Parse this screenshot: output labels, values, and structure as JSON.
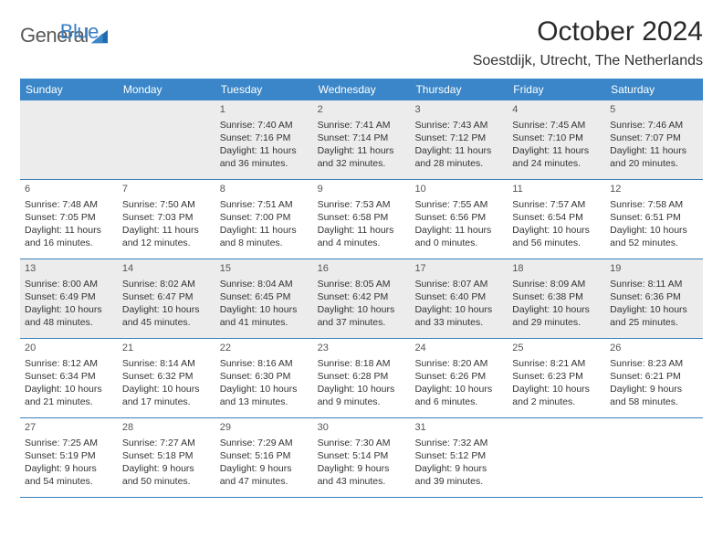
{
  "brand": {
    "text1": "General",
    "text2": "Blue"
  },
  "title": "October 2024",
  "location": "Soestdijk, Utrecht, The Netherlands",
  "colors": {
    "header_bg": "#3a86c8",
    "shaded_bg": "#ececec",
    "row_border": "#3a7fb8",
    "logo_blue": "#3a7fc4",
    "logo_gray": "#5a5a5a"
  },
  "day_names": [
    "Sunday",
    "Monday",
    "Tuesday",
    "Wednesday",
    "Thursday",
    "Friday",
    "Saturday"
  ],
  "weeks": [
    [
      null,
      null,
      {
        "n": 1,
        "sr": "7:40 AM",
        "ss": "7:16 PM",
        "dl": "11 hours and 36 minutes."
      },
      {
        "n": 2,
        "sr": "7:41 AM",
        "ss": "7:14 PM",
        "dl": "11 hours and 32 minutes."
      },
      {
        "n": 3,
        "sr": "7:43 AM",
        "ss": "7:12 PM",
        "dl": "11 hours and 28 minutes."
      },
      {
        "n": 4,
        "sr": "7:45 AM",
        "ss": "7:10 PM",
        "dl": "11 hours and 24 minutes."
      },
      {
        "n": 5,
        "sr": "7:46 AM",
        "ss": "7:07 PM",
        "dl": "11 hours and 20 minutes."
      }
    ],
    [
      {
        "n": 6,
        "sr": "7:48 AM",
        "ss": "7:05 PM",
        "dl": "11 hours and 16 minutes."
      },
      {
        "n": 7,
        "sr": "7:50 AM",
        "ss": "7:03 PM",
        "dl": "11 hours and 12 minutes."
      },
      {
        "n": 8,
        "sr": "7:51 AM",
        "ss": "7:00 PM",
        "dl": "11 hours and 8 minutes."
      },
      {
        "n": 9,
        "sr": "7:53 AM",
        "ss": "6:58 PM",
        "dl": "11 hours and 4 minutes."
      },
      {
        "n": 10,
        "sr": "7:55 AM",
        "ss": "6:56 PM",
        "dl": "11 hours and 0 minutes."
      },
      {
        "n": 11,
        "sr": "7:57 AM",
        "ss": "6:54 PM",
        "dl": "10 hours and 56 minutes."
      },
      {
        "n": 12,
        "sr": "7:58 AM",
        "ss": "6:51 PM",
        "dl": "10 hours and 52 minutes."
      }
    ],
    [
      {
        "n": 13,
        "sr": "8:00 AM",
        "ss": "6:49 PM",
        "dl": "10 hours and 48 minutes."
      },
      {
        "n": 14,
        "sr": "8:02 AM",
        "ss": "6:47 PM",
        "dl": "10 hours and 45 minutes."
      },
      {
        "n": 15,
        "sr": "8:04 AM",
        "ss": "6:45 PM",
        "dl": "10 hours and 41 minutes."
      },
      {
        "n": 16,
        "sr": "8:05 AM",
        "ss": "6:42 PM",
        "dl": "10 hours and 37 minutes."
      },
      {
        "n": 17,
        "sr": "8:07 AM",
        "ss": "6:40 PM",
        "dl": "10 hours and 33 minutes."
      },
      {
        "n": 18,
        "sr": "8:09 AM",
        "ss": "6:38 PM",
        "dl": "10 hours and 29 minutes."
      },
      {
        "n": 19,
        "sr": "8:11 AM",
        "ss": "6:36 PM",
        "dl": "10 hours and 25 minutes."
      }
    ],
    [
      {
        "n": 20,
        "sr": "8:12 AM",
        "ss": "6:34 PM",
        "dl": "10 hours and 21 minutes."
      },
      {
        "n": 21,
        "sr": "8:14 AM",
        "ss": "6:32 PM",
        "dl": "10 hours and 17 minutes."
      },
      {
        "n": 22,
        "sr": "8:16 AM",
        "ss": "6:30 PM",
        "dl": "10 hours and 13 minutes."
      },
      {
        "n": 23,
        "sr": "8:18 AM",
        "ss": "6:28 PM",
        "dl": "10 hours and 9 minutes."
      },
      {
        "n": 24,
        "sr": "8:20 AM",
        "ss": "6:26 PM",
        "dl": "10 hours and 6 minutes."
      },
      {
        "n": 25,
        "sr": "8:21 AM",
        "ss": "6:23 PM",
        "dl": "10 hours and 2 minutes."
      },
      {
        "n": 26,
        "sr": "8:23 AM",
        "ss": "6:21 PM",
        "dl": "9 hours and 58 minutes."
      }
    ],
    [
      {
        "n": 27,
        "sr": "7:25 AM",
        "ss": "5:19 PM",
        "dl": "9 hours and 54 minutes."
      },
      {
        "n": 28,
        "sr": "7:27 AM",
        "ss": "5:18 PM",
        "dl": "9 hours and 50 minutes."
      },
      {
        "n": 29,
        "sr": "7:29 AM",
        "ss": "5:16 PM",
        "dl": "9 hours and 47 minutes."
      },
      {
        "n": 30,
        "sr": "7:30 AM",
        "ss": "5:14 PM",
        "dl": "9 hours and 43 minutes."
      },
      {
        "n": 31,
        "sr": "7:32 AM",
        "ss": "5:12 PM",
        "dl": "9 hours and 39 minutes."
      },
      null,
      null
    ]
  ],
  "labels": {
    "sunrise": "Sunrise:",
    "sunset": "Sunset:",
    "daylight": "Daylight:"
  }
}
